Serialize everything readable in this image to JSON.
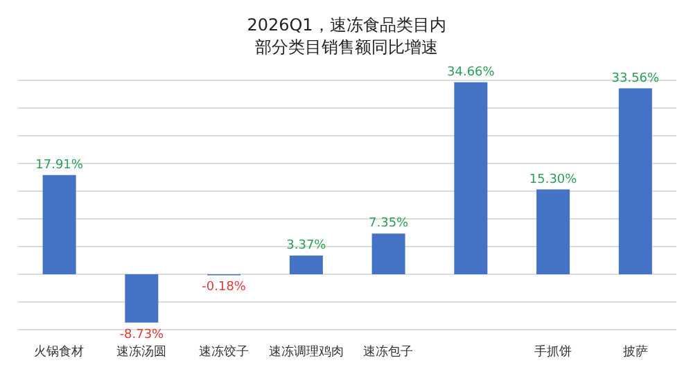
{
  "chart_data": {
    "type": "bar",
    "title": "2026Q1，速冻食品类目内部分类目销售额同比增速",
    "categories": [
      "火锅食材",
      "速冻汤圆",
      "速冻饺子",
      "速冻调理鸡肉",
      "速冻包子",
      null,
      "手抓饼",
      "披萨"
    ],
    "values": [
      17.91,
      -8.73,
      -0.18,
      3.37,
      7.35,
      34.66,
      15.3,
      33.56
    ],
    "value_labels": [
      "17.91%",
      "-8.73%",
      "-0.18%",
      "3.37%",
      "7.35%",
      "34.66%",
      "15.30%",
      "33.56%"
    ],
    "color": "#4472c4",
    "ylim": [
      -10,
      35
    ],
    "grid": "y",
    "tick_labels": "x"
  }
}
